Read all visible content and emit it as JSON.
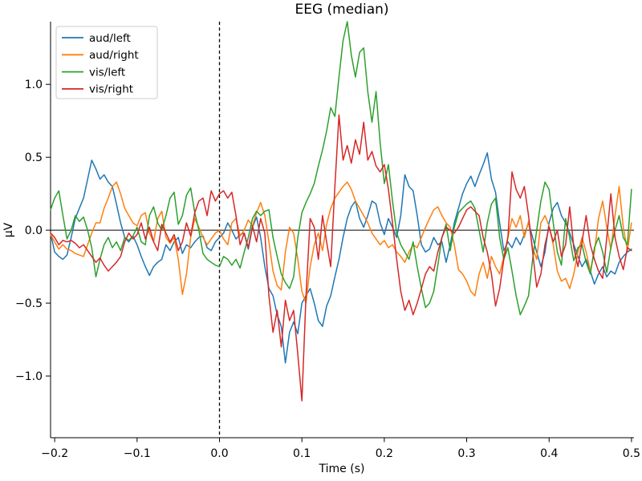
{
  "chart_data": {
    "type": "line",
    "title": "EEG (median)",
    "xlabel": "Time (s)",
    "ylabel": "µV",
    "xlim": [
      -0.205,
      0.503
    ],
    "ylim": [
      -1.423,
      1.43
    ],
    "grid": false,
    "legend_position": "upper left",
    "xticks": [
      -0.2,
      -0.1,
      0.0,
      0.1,
      0.2,
      0.3,
      0.4,
      0.5
    ],
    "xtick_labels": [
      "−0.2",
      "−0.1",
      "0.0",
      "0.1",
      "0.2",
      "0.3",
      "0.4",
      "0.5"
    ],
    "yticks": [
      -1.0,
      -0.5,
      0.0,
      0.5,
      1.0
    ],
    "ytick_labels": [
      "−1.0",
      "−0.5",
      "0.0",
      "0.5",
      "1.0"
    ],
    "annotations": {
      "vline_x": 0.0,
      "vline_style": "dashed",
      "hline_y": 0.0,
      "hline_style": "solid",
      "line_color": "#000000"
    },
    "x_start": -0.205,
    "x_step": 0.005,
    "series": [
      {
        "name": "aud/left",
        "color": "#1f77b4",
        "values": [
          -0.02,
          -0.15,
          -0.18,
          -0.2,
          -0.17,
          -0.05,
          0.08,
          0.15,
          0.22,
          0.35,
          0.48,
          0.42,
          0.35,
          0.38,
          0.33,
          0.3,
          0.18,
          0.05,
          -0.05,
          -0.08,
          -0.04,
          -0.1,
          -0.18,
          -0.25,
          -0.31,
          -0.25,
          -0.22,
          -0.2,
          -0.1,
          -0.14,
          -0.08,
          -0.05,
          -0.16,
          -0.1,
          -0.12,
          -0.08,
          -0.05,
          -0.04,
          -0.12,
          -0.14,
          -0.08,
          -0.05,
          -0.02,
          0.05,
          0.0,
          -0.06,
          -0.03,
          -0.02,
          -0.13,
          0.02,
          0.09,
          -0.05,
          -0.25,
          -0.4,
          -0.45,
          -0.58,
          -0.66,
          -0.91,
          -0.7,
          -0.63,
          -0.71,
          -0.5,
          -0.45,
          -0.4,
          -0.5,
          -0.62,
          -0.66,
          -0.52,
          -0.45,
          -0.32,
          -0.2,
          -0.05,
          0.08,
          0.16,
          0.2,
          0.08,
          0.02,
          0.1,
          0.2,
          0.18,
          0.05,
          -0.03,
          0.08,
          0.02,
          -0.05,
          0.1,
          0.38,
          0.3,
          0.27,
          0.1,
          -0.1,
          -0.15,
          -0.13,
          -0.05,
          -0.1,
          -0.08,
          -0.22,
          -0.1,
          0.05,
          0.15,
          0.25,
          0.32,
          0.37,
          0.3,
          0.38,
          0.45,
          0.53,
          0.35,
          0.26,
          0.05,
          -0.14,
          -0.08,
          -0.12,
          -0.05,
          -0.1,
          -0.03,
          0.05,
          -0.05,
          -0.15,
          -0.25,
          -0.15,
          0.05,
          0.15,
          0.19,
          0.1,
          0.05,
          -0.02,
          -0.1,
          -0.18,
          -0.25,
          -0.2,
          -0.28,
          -0.37,
          -0.3,
          -0.25,
          -0.32,
          -0.28,
          -0.3,
          -0.22,
          -0.18,
          -0.15,
          -0.13
        ]
      },
      {
        "name": "aud/right",
        "color": "#ff7f0e",
        "values": [
          -0.03,
          -0.08,
          -0.13,
          -0.1,
          -0.13,
          -0.14,
          -0.16,
          -0.17,
          -0.18,
          -0.1,
          -0.02,
          0.05,
          0.05,
          0.15,
          0.22,
          0.3,
          0.33,
          0.25,
          0.15,
          0.1,
          0.05,
          0.03,
          0.1,
          0.12,
          -0.02,
          -0.08,
          0.08,
          0.13,
          -0.05,
          -0.09,
          -0.05,
          -0.2,
          -0.44,
          -0.3,
          -0.05,
          0.08,
          0.02,
          -0.05,
          -0.1,
          -0.06,
          -0.02,
          0.0,
          -0.06,
          -0.1,
          0.05,
          0.08,
          -0.04,
          0.0,
          0.07,
          0.03,
          0.12,
          0.19,
          0.1,
          -0.08,
          -0.28,
          -0.38,
          -0.41,
          -0.15,
          0.02,
          -0.02,
          -0.2,
          -0.42,
          -0.5,
          -0.25,
          -0.1,
          -0.02,
          -0.14,
          0.04,
          0.15,
          0.22,
          0.26,
          0.3,
          0.33,
          0.28,
          0.2,
          0.15,
          0.1,
          0.05,
          -0.02,
          -0.06,
          -0.1,
          -0.07,
          -0.12,
          -0.1,
          -0.15,
          -0.18,
          -0.22,
          -0.15,
          -0.1,
          -0.12,
          -0.05,
          0.02,
          0.08,
          0.14,
          0.16,
          0.1,
          0.05,
          0.02,
          -0.1,
          -0.27,
          -0.3,
          -0.35,
          -0.42,
          -0.45,
          -0.3,
          -0.22,
          -0.33,
          -0.18,
          -0.25,
          -0.3,
          -0.18,
          -0.05,
          0.08,
          0.02,
          0.1,
          -0.05,
          0.06,
          -0.12,
          -0.2,
          0.05,
          0.1,
          0.03,
          -0.1,
          -0.28,
          -0.35,
          -0.33,
          -0.4,
          -0.3,
          -0.15,
          -0.05,
          -0.15,
          -0.28,
          -0.15,
          0.08,
          0.2,
          0.02,
          -0.13,
          0.1,
          0.3,
          0.02,
          -0.14,
          0.05
        ]
      },
      {
        "name": "vis/left",
        "color": "#2ca02c",
        "values": [
          0.14,
          0.22,
          0.27,
          0.1,
          -0.06,
          0.0,
          0.1,
          0.06,
          0.09,
          0.0,
          -0.12,
          -0.32,
          -0.2,
          -0.1,
          -0.05,
          -0.12,
          -0.08,
          -0.14,
          -0.05,
          -0.07,
          -0.04,
          0.02,
          -0.08,
          -0.1,
          0.1,
          0.16,
          0.05,
          0.0,
          0.1,
          0.22,
          0.26,
          0.04,
          0.1,
          0.24,
          0.29,
          0.12,
          0.0,
          -0.16,
          -0.2,
          -0.22,
          -0.24,
          -0.25,
          -0.18,
          -0.2,
          -0.24,
          -0.2,
          -0.26,
          -0.15,
          -0.05,
          0.08,
          0.13,
          0.1,
          0.13,
          0.14,
          -0.05,
          -0.18,
          -0.3,
          -0.36,
          -0.4,
          -0.32,
          -0.05,
          0.12,
          0.19,
          0.25,
          0.32,
          0.44,
          0.55,
          0.68,
          0.84,
          0.78,
          1.05,
          1.3,
          1.43,
          1.2,
          1.05,
          1.22,
          1.25,
          0.95,
          0.74,
          0.95,
          0.6,
          0.32,
          0.45,
          0.2,
          -0.02,
          -0.1,
          -0.15,
          -0.2,
          -0.08,
          -0.25,
          -0.4,
          -0.53,
          -0.5,
          -0.42,
          -0.24,
          -0.05,
          0.04,
          -0.14,
          0.02,
          0.12,
          0.15,
          0.18,
          0.2,
          0.15,
          0.0,
          -0.15,
          0.05,
          0.18,
          0.22,
          -0.05,
          -0.2,
          -0.12,
          -0.28,
          -0.45,
          -0.58,
          -0.52,
          -0.45,
          -0.2,
          0.0,
          0.2,
          0.33,
          0.28,
          0.05,
          -0.15,
          -0.24,
          0.08,
          -0.05,
          -0.21,
          -0.12,
          -0.1,
          -0.22,
          -0.3,
          -0.12,
          -0.05,
          -0.15,
          -0.29,
          -0.12,
          0.0,
          0.1,
          -0.05,
          -0.1,
          0.28
        ]
      },
      {
        "name": "vis/right",
        "color": "#d62728",
        "values": [
          -0.02,
          -0.05,
          -0.1,
          -0.07,
          -0.08,
          -0.07,
          -0.09,
          -0.12,
          -0.1,
          -0.14,
          -0.18,
          -0.22,
          -0.19,
          -0.24,
          -0.28,
          -0.25,
          -0.22,
          -0.18,
          -0.08,
          -0.02,
          -0.06,
          -0.03,
          0.05,
          -0.06,
          0.02,
          -0.08,
          -0.14,
          0.04,
          -0.02,
          -0.08,
          -0.03,
          -0.14,
          -0.08,
          0.05,
          -0.04,
          0.12,
          0.2,
          0.22,
          0.1,
          0.27,
          0.2,
          0.25,
          0.27,
          0.22,
          0.26,
          0.1,
          -0.1,
          -0.02,
          -0.12,
          0.03,
          -0.08,
          0.08,
          -0.02,
          -0.45,
          -0.7,
          -0.55,
          -0.8,
          -0.48,
          -0.62,
          -0.55,
          -0.85,
          -1.17,
          -0.45,
          0.08,
          0.02,
          -0.2,
          0.1,
          -0.08,
          -0.25,
          0.3,
          0.79,
          0.48,
          0.58,
          0.46,
          0.62,
          0.52,
          0.74,
          0.48,
          0.54,
          0.44,
          0.4,
          0.45,
          0.28,
          0.05,
          -0.2,
          -0.42,
          -0.55,
          -0.48,
          -0.58,
          -0.5,
          -0.4,
          -0.3,
          -0.25,
          -0.28,
          -0.15,
          -0.05,
          0.02,
          0.0,
          -0.02,
          0.02,
          0.08,
          0.14,
          0.16,
          0.13,
          0.1,
          -0.05,
          -0.15,
          -0.3,
          -0.52,
          -0.4,
          -0.2,
          -0.05,
          0.4,
          0.28,
          0.22,
          0.3,
          0.1,
          -0.15,
          -0.39,
          -0.3,
          -0.1,
          0.02,
          -0.08,
          0.0,
          -0.18,
          -0.1,
          0.16,
          -0.12,
          -0.25,
          -0.08,
          0.1,
          -0.1,
          -0.2,
          -0.28,
          -0.33,
          -0.05,
          0.25,
          -0.05,
          -0.18,
          -0.27,
          -0.12,
          -0.14
        ]
      }
    ]
  }
}
